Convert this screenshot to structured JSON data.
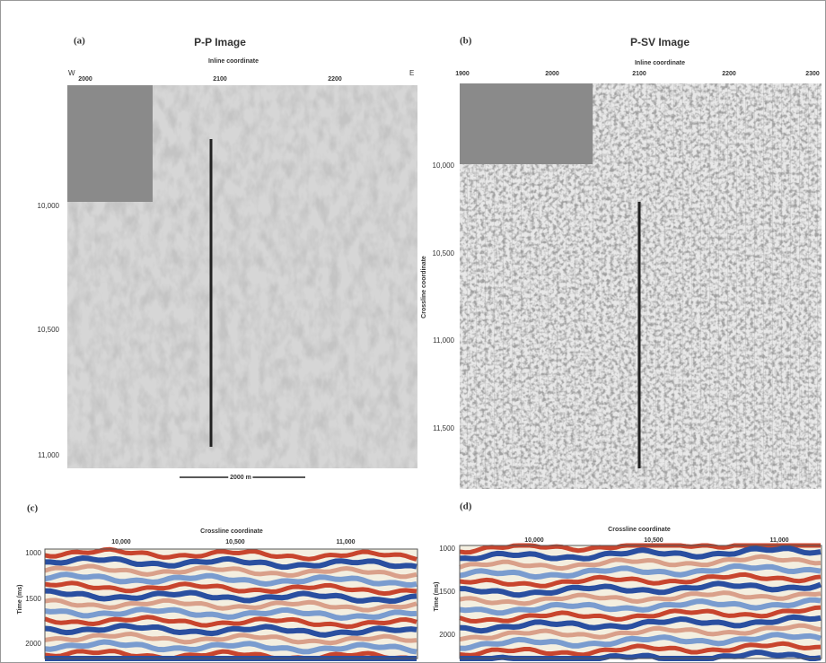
{
  "panels": [
    {
      "label": "(a)",
      "title": "P-P Image",
      "x_axis_label": "Inline coordinate",
      "left_end": "W",
      "right_end": "E",
      "x_ticks": [
        "2000",
        "2100",
        "2200"
      ],
      "y_ticks": [
        "10,000",
        "10,500",
        "11,000"
      ],
      "scale_bar": "2000 m"
    },
    {
      "label": "(b)",
      "title": "P-SV Image",
      "x_axis_label": "Inline coordinate",
      "y_axis_label": "Crossline coordinate",
      "x_ticks": [
        "1900",
        "2000",
        "2100",
        "2200",
        "2300"
      ],
      "y_ticks": [
        "10,000",
        "10,500",
        "11,000",
        "11,500"
      ]
    },
    {
      "label": "(c)",
      "x_axis_label": "Crossline coordinate",
      "y_axis_label": "Time (ms)",
      "x_ticks": [
        "10,000",
        "10,500",
        "11,000"
      ],
      "y_ticks": [
        "1000",
        "1500",
        "2000"
      ]
    },
    {
      "label": "(d)",
      "x_axis_label": "Crossline coordinate",
      "y_axis_label": "Time (ms)",
      "x_ticks": [
        "10,000",
        "10,500",
        "11,000"
      ],
      "y_ticks": [
        "1000",
        "1500",
        "2000"
      ]
    }
  ]
}
